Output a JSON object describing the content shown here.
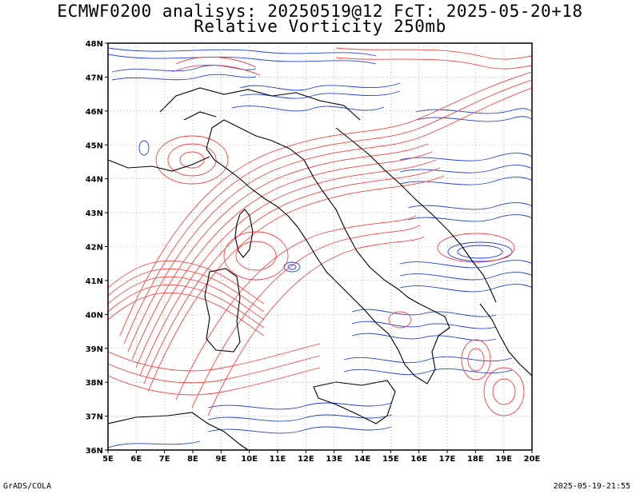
{
  "title_line1": "ECMWF0200 analisys: 20250519@12 FcT: 2025-05-20+18",
  "title_line2": "Relative Vorticity 250mb",
  "footer_left": "GrADS/COLA",
  "footer_right": "2025-05-19-21:55",
  "map": {
    "lon_range": [
      5,
      20
    ],
    "lat_range": [
      36,
      48
    ],
    "lon_labels": [
      "5E",
      "6E",
      "7E",
      "8E",
      "9E",
      "10E",
      "11E",
      "12E",
      "13E",
      "14E",
      "15E",
      "16E",
      "17E",
      "18E",
      "19E",
      "20E"
    ],
    "lat_labels": [
      "36N",
      "37N",
      "38N",
      "39N",
      "40N",
      "41N",
      "42N",
      "43N",
      "44N",
      "45N",
      "46N",
      "47N",
      "48N"
    ],
    "colors": {
      "positive_contour": "#ff4040",
      "negative_contour": "#2040e0",
      "coastline": "#000000",
      "grid": "#888888"
    }
  }
}
